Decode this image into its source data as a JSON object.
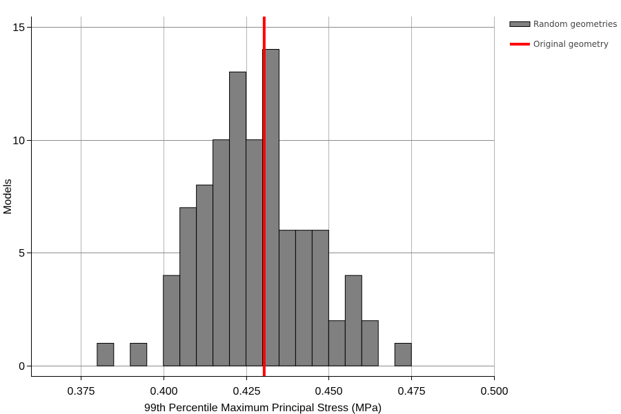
{
  "chart_data": {
    "type": "bar",
    "subtype": "histogram",
    "xlabel": "99th Percentile Maximum Principal Stress (MPa)",
    "ylabel": "Models",
    "xlim": [
      0.36,
      0.5
    ],
    "ylim": [
      -0.45,
      15.45
    ],
    "x_ticks": [
      0.375,
      0.4,
      0.425,
      0.45,
      0.475,
      0.5
    ],
    "x_tick_labels": [
      "0.375",
      "0.400",
      "0.425",
      "0.450",
      "0.475",
      "0.500"
    ],
    "y_ticks": [
      0,
      5,
      10,
      15
    ],
    "y_tick_labels": [
      "0",
      "5",
      "10",
      "15"
    ],
    "grid": true,
    "legend_position": "top-right, outside plot",
    "bin_width": 0.005,
    "series": [
      {
        "name": "Random geometries",
        "kind": "histogram",
        "color": "#808080",
        "edge_color": "#000000",
        "bin_starts": [
          0.38,
          0.385,
          0.39,
          0.395,
          0.4,
          0.405,
          0.41,
          0.415,
          0.42,
          0.425,
          0.43,
          0.435,
          0.44,
          0.445,
          0.45,
          0.455,
          0.46,
          0.465,
          0.47
        ],
        "counts": [
          1,
          0,
          1,
          0,
          4,
          7,
          8,
          10,
          13,
          10,
          14,
          6,
          6,
          6,
          2,
          4,
          2,
          0,
          1
        ]
      },
      {
        "name": "Original geometry",
        "kind": "vertical-line",
        "color": "#ff0000",
        "x": 0.4305
      }
    ]
  }
}
